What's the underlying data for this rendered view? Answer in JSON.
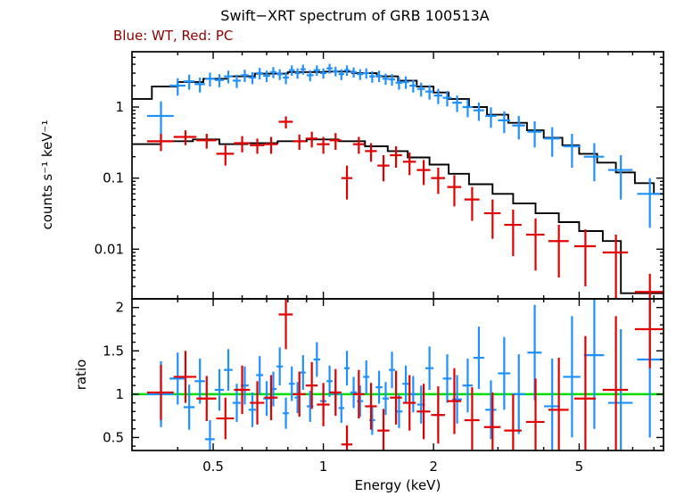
{
  "figure": {
    "background": "#ffffff"
  },
  "chart_data": {
    "type": "scatter",
    "title": "Swift−XRT spectrum of GRB 100513A",
    "subtitle": "Blue: WT, Red: PC",
    "subtitle_color": "#8b0000",
    "xlabel": "Energy (keV)",
    "xscale": "log",
    "xlim": [
      0.3,
      8.5
    ],
    "xticks": [
      {
        "v": 0.5,
        "label": "0.5"
      },
      {
        "v": 1,
        "label": "1"
      },
      {
        "v": 2,
        "label": "2"
      },
      {
        "v": 5,
        "label": "5"
      }
    ],
    "colors": {
      "model": "#000000",
      "reference": "#00dd00",
      "frame": "#000000"
    },
    "panels": [
      {
        "id": "spectrum",
        "ylabel": "counts s⁻¹ keV⁻¹",
        "yscale": "log",
        "ylim": [
          0.002,
          6
        ],
        "yticks": [
          {
            "v": 1,
            "label": "1"
          },
          {
            "v": 0.1,
            "label": "0.1"
          },
          {
            "v": 0.01,
            "label": "0.01"
          }
        ]
      },
      {
        "id": "ratio",
        "ylabel": "ratio",
        "yscale": "linear",
        "ylim": [
          0.35,
          2.1
        ],
        "yticks": [
          {
            "v": 2,
            "label": "2"
          },
          {
            "v": 1.5,
            "label": "1.5"
          },
          {
            "v": 1,
            "label": "1"
          },
          {
            "v": 0.5,
            "label": "0.5"
          }
        ],
        "reference_line": 1
      }
    ],
    "point_format": [
      "energy_keV",
      "energy_err",
      "rate",
      "rate_err",
      "ratio",
      "ratio_err"
    ],
    "series": [
      {
        "name": "WT",
        "color": "#1e90ff",
        "points": [
          [
            0.36,
            0.03,
            0.75,
            0.45,
            1.0,
            0.38
          ],
          [
            0.4,
            0.02,
            2.0,
            0.55,
            1.18,
            0.3
          ],
          [
            0.43,
            0.015,
            2.3,
            0.55,
            0.85,
            0.26
          ],
          [
            0.46,
            0.015,
            2.1,
            0.5,
            1.15,
            0.26
          ],
          [
            0.49,
            0.015,
            2.5,
            0.55,
            0.48,
            0.22
          ],
          [
            0.52,
            0.015,
            2.4,
            0.5,
            1.05,
            0.24
          ],
          [
            0.55,
            0.015,
            2.7,
            0.55,
            1.28,
            0.24
          ],
          [
            0.58,
            0.015,
            2.35,
            0.5,
            0.9,
            0.22
          ],
          [
            0.61,
            0.015,
            2.8,
            0.55,
            1.1,
            0.22
          ],
          [
            0.64,
            0.015,
            2.6,
            0.5,
            0.82,
            0.2
          ],
          [
            0.67,
            0.015,
            3.0,
            0.55,
            1.22,
            0.22
          ],
          [
            0.7,
            0.015,
            2.75,
            0.5,
            0.95,
            0.2
          ],
          [
            0.73,
            0.015,
            3.1,
            0.55,
            1.06,
            0.2
          ],
          [
            0.76,
            0.015,
            2.9,
            0.5,
            1.32,
            0.22
          ],
          [
            0.79,
            0.015,
            2.6,
            0.5,
            0.78,
            0.18
          ],
          [
            0.82,
            0.015,
            3.3,
            0.55,
            1.12,
            0.2
          ],
          [
            0.85,
            0.015,
            3.0,
            0.5,
            0.96,
            0.18
          ],
          [
            0.88,
            0.015,
            3.4,
            0.55,
            1.25,
            0.2
          ],
          [
            0.92,
            0.02,
            2.8,
            0.5,
            0.86,
            0.18
          ],
          [
            0.96,
            0.02,
            3.3,
            0.55,
            1.4,
            0.2
          ],
          [
            1.0,
            0.02,
            3.0,
            0.5,
            0.92,
            0.18
          ],
          [
            1.04,
            0.02,
            3.5,
            0.55,
            1.15,
            0.18
          ],
          [
            1.08,
            0.02,
            3.2,
            0.5,
            1.0,
            0.18
          ],
          [
            1.12,
            0.02,
            2.9,
            0.5,
            0.84,
            0.17
          ],
          [
            1.16,
            0.02,
            3.3,
            0.55,
            1.3,
            0.2
          ],
          [
            1.21,
            0.025,
            3.1,
            0.5,
            1.02,
            0.18
          ],
          [
            1.26,
            0.025,
            2.9,
            0.5,
            0.92,
            0.18
          ],
          [
            1.31,
            0.025,
            3.0,
            0.5,
            1.2,
            0.19
          ],
          [
            1.36,
            0.025,
            2.7,
            0.5,
            0.7,
            0.17
          ],
          [
            1.42,
            0.03,
            2.75,
            0.5,
            1.08,
            0.19
          ],
          [
            1.48,
            0.03,
            2.5,
            0.45,
            0.95,
            0.19
          ],
          [
            1.54,
            0.03,
            2.45,
            0.45,
            1.28,
            0.21
          ],
          [
            1.61,
            0.035,
            2.2,
            0.45,
            0.8,
            0.19
          ],
          [
            1.68,
            0.035,
            2.25,
            0.45,
            1.12,
            0.21
          ],
          [
            1.76,
            0.04,
            2.0,
            0.4,
            1.0,
            0.21
          ],
          [
            1.85,
            0.045,
            1.8,
            0.4,
            0.88,
            0.22
          ],
          [
            1.95,
            0.05,
            1.65,
            0.38,
            1.3,
            0.25
          ],
          [
            2.06,
            0.055,
            1.45,
            0.35,
            0.76,
            0.24
          ],
          [
            2.18,
            0.06,
            1.35,
            0.33,
            1.18,
            0.28
          ],
          [
            2.32,
            0.07,
            1.15,
            0.3,
            0.94,
            0.28
          ],
          [
            2.48,
            0.08,
            1.0,
            0.28,
            1.1,
            0.31
          ],
          [
            2.66,
            0.09,
            0.9,
            0.26,
            1.42,
            0.36
          ],
          [
            2.87,
            0.1,
            0.75,
            0.24,
            0.82,
            0.34
          ],
          [
            3.12,
            0.12,
            0.65,
            0.22,
            1.24,
            0.42
          ],
          [
            3.42,
            0.14,
            0.55,
            0.2,
            1.0,
            0.46
          ],
          [
            3.78,
            0.17,
            0.45,
            0.18,
            1.48,
            0.55
          ],
          [
            4.22,
            0.21,
            0.36,
            0.16,
            0.86,
            0.55
          ],
          [
            4.78,
            0.26,
            0.28,
            0.14,
            1.2,
            0.7
          ],
          [
            5.5,
            0.35,
            0.2,
            0.11,
            1.45,
            0.85
          ],
          [
            6.5,
            0.5,
            0.13,
            0.08,
            0.9,
            0.85
          ],
          [
            7.8,
            0.6,
            0.06,
            0.04,
            1.4,
            0.9
          ]
        ]
      },
      {
        "name": "PC",
        "color": "#e00000",
        "points": [
          [
            0.36,
            0.03,
            0.33,
            0.09,
            1.02,
            0.32
          ],
          [
            0.42,
            0.03,
            0.38,
            0.09,
            1.2,
            0.3
          ],
          [
            0.48,
            0.03,
            0.34,
            0.08,
            0.95,
            0.26
          ],
          [
            0.54,
            0.03,
            0.22,
            0.07,
            0.72,
            0.24
          ],
          [
            0.6,
            0.03,
            0.31,
            0.08,
            1.05,
            0.28
          ],
          [
            0.66,
            0.03,
            0.29,
            0.07,
            0.9,
            0.25
          ],
          [
            0.72,
            0.03,
            0.3,
            0.08,
            0.96,
            0.26
          ],
          [
            0.79,
            0.035,
            0.62,
            0.12,
            1.92,
            0.4
          ],
          [
            0.86,
            0.035,
            0.33,
            0.08,
            1.0,
            0.26
          ],
          [
            0.93,
            0.035,
            0.36,
            0.09,
            1.1,
            0.27
          ],
          [
            1.0,
            0.04,
            0.3,
            0.08,
            0.88,
            0.25
          ],
          [
            1.08,
            0.04,
            0.34,
            0.09,
            1.02,
            0.27
          ],
          [
            1.16,
            0.04,
            0.1,
            0.05,
            0.42,
            0.22
          ],
          [
            1.25,
            0.045,
            0.3,
            0.08,
            1.0,
            0.28
          ],
          [
            1.35,
            0.05,
            0.24,
            0.07,
            0.86,
            0.27
          ],
          [
            1.46,
            0.055,
            0.15,
            0.06,
            0.58,
            0.25
          ],
          [
            1.58,
            0.06,
            0.21,
            0.07,
            0.96,
            0.31
          ],
          [
            1.72,
            0.07,
            0.17,
            0.06,
            0.9,
            0.32
          ],
          [
            1.88,
            0.08,
            0.13,
            0.05,
            0.8,
            0.32
          ],
          [
            2.06,
            0.09,
            0.1,
            0.04,
            0.76,
            0.33
          ],
          [
            2.28,
            0.1,
            0.075,
            0.035,
            0.92,
            0.38
          ],
          [
            2.55,
            0.12,
            0.05,
            0.025,
            0.7,
            0.38
          ],
          [
            2.9,
            0.15,
            0.032,
            0.018,
            0.62,
            0.4
          ],
          [
            3.3,
            0.18,
            0.022,
            0.014,
            0.58,
            0.42
          ],
          [
            3.8,
            0.22,
            0.016,
            0.011,
            0.68,
            0.5
          ],
          [
            4.4,
            0.28,
            0.013,
            0.009,
            0.82,
            0.6
          ],
          [
            5.2,
            0.35,
            0.011,
            0.008,
            0.95,
            0.72
          ],
          [
            6.3,
            0.5,
            0.009,
            0.007,
            1.05,
            0.85
          ],
          [
            7.8,
            0.7,
            0.0025,
            0.002,
            1.75,
            0.45
          ]
        ]
      }
    ],
    "models": [
      {
        "name": "WT model",
        "steps": [
          [
            0.3,
            0.34,
            1.3
          ],
          [
            0.34,
            0.4,
            1.95
          ],
          [
            0.4,
            0.47,
            2.25
          ],
          [
            0.47,
            0.55,
            2.5
          ],
          [
            0.55,
            0.65,
            2.7
          ],
          [
            0.65,
            0.8,
            2.95
          ],
          [
            0.8,
            1.0,
            3.1
          ],
          [
            1.0,
            1.2,
            3.15
          ],
          [
            1.2,
            1.4,
            3.0
          ],
          [
            1.4,
            1.6,
            2.7
          ],
          [
            1.6,
            1.8,
            2.35
          ],
          [
            1.8,
            2.0,
            1.95
          ],
          [
            2.0,
            2.2,
            1.6
          ],
          [
            2.2,
            2.5,
            1.3
          ],
          [
            2.5,
            2.8,
            1.0
          ],
          [
            2.8,
            3.2,
            0.78
          ],
          [
            3.2,
            3.6,
            0.6
          ],
          [
            3.6,
            4.0,
            0.47
          ],
          [
            4.0,
            4.5,
            0.37
          ],
          [
            4.5,
            5.0,
            0.29
          ],
          [
            5.0,
            5.6,
            0.22
          ],
          [
            5.6,
            6.3,
            0.165
          ],
          [
            6.3,
            7.1,
            0.12
          ],
          [
            7.1,
            8.0,
            0.085
          ],
          [
            8.0,
            8.5,
            0.06
          ]
        ]
      },
      {
        "name": "PC model",
        "steps": [
          [
            0.3,
            0.36,
            0.3
          ],
          [
            0.36,
            0.44,
            0.33
          ],
          [
            0.44,
            0.52,
            0.35
          ],
          [
            0.52,
            0.62,
            0.3
          ],
          [
            0.62,
            0.75,
            0.31
          ],
          [
            0.75,
            0.9,
            0.33
          ],
          [
            0.9,
            1.1,
            0.35
          ],
          [
            1.1,
            1.3,
            0.33
          ],
          [
            1.3,
            1.5,
            0.28
          ],
          [
            1.5,
            1.7,
            0.24
          ],
          [
            1.7,
            1.95,
            0.195
          ],
          [
            1.95,
            2.2,
            0.155
          ],
          [
            2.2,
            2.5,
            0.115
          ],
          [
            2.5,
            2.9,
            0.082
          ],
          [
            2.9,
            3.3,
            0.06
          ],
          [
            3.3,
            3.8,
            0.044
          ],
          [
            3.8,
            4.4,
            0.032
          ],
          [
            4.4,
            5.0,
            0.024
          ],
          [
            5.0,
            5.8,
            0.018
          ],
          [
            5.8,
            6.5,
            0.013
          ],
          [
            6.5,
            8.5,
            0.0024
          ]
        ]
      }
    ]
  }
}
